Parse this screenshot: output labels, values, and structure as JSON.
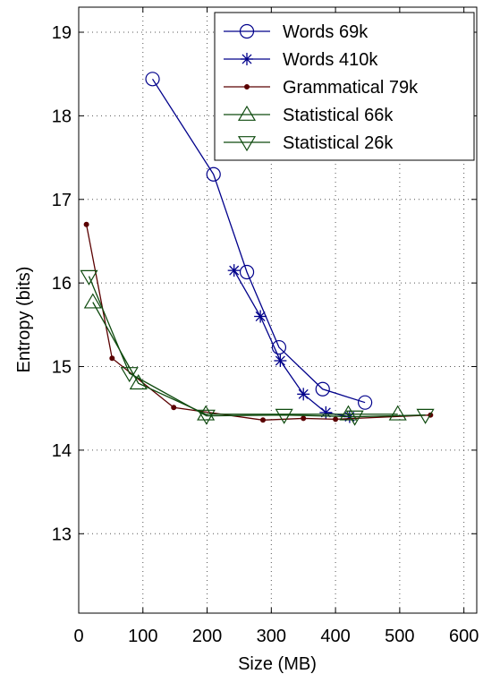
{
  "chart_data": {
    "type": "line",
    "xlabel": "Size (MB)",
    "ylabel": "Entropy (bits)",
    "xlim": [
      0,
      620
    ],
    "ylim": [
      12.05,
      19.3
    ],
    "xticks": [
      0,
      100,
      200,
      300,
      400,
      500,
      600
    ],
    "yticks": [
      13,
      14,
      15,
      16,
      17,
      18,
      19
    ],
    "grid": true,
    "legend_position": "top-right",
    "series": [
      {
        "name": "Words 69k",
        "color": "#00008B",
        "marker": "circle",
        "x": [
          115,
          210,
          262,
          312,
          380,
          446
        ],
        "y": [
          18.44,
          17.3,
          16.13,
          15.23,
          14.73,
          14.57
        ]
      },
      {
        "name": "Words 410k",
        "color": "#00008B",
        "marker": "star",
        "x": [
          242,
          283,
          314,
          350,
          385,
          422
        ],
        "y": [
          16.15,
          15.6,
          15.07,
          14.67,
          14.45,
          14.4
        ]
      },
      {
        "name": "Grammatical 79k",
        "color": "#5A0000",
        "marker": "dot",
        "x": [
          12,
          52,
          148,
          287,
          350,
          400,
          548
        ],
        "y": [
          16.7,
          15.1,
          14.51,
          14.36,
          14.38,
          14.37,
          14.42
        ]
      },
      {
        "name": "Statistical 66k",
        "color": "#0E4A0E",
        "marker": "triangle-up",
        "x": [
          22,
          93,
          198,
          420,
          497
        ],
        "y": [
          15.77,
          14.8,
          14.43,
          14.43,
          14.43
        ]
      },
      {
        "name": "Statistical 26k",
        "color": "#0E4A0E",
        "marker": "triangle-down",
        "x": [
          16,
          79,
          199,
          320,
          430,
          540
        ],
        "y": [
          16.08,
          14.92,
          14.41,
          14.42,
          14.4,
          14.42
        ]
      }
    ]
  }
}
